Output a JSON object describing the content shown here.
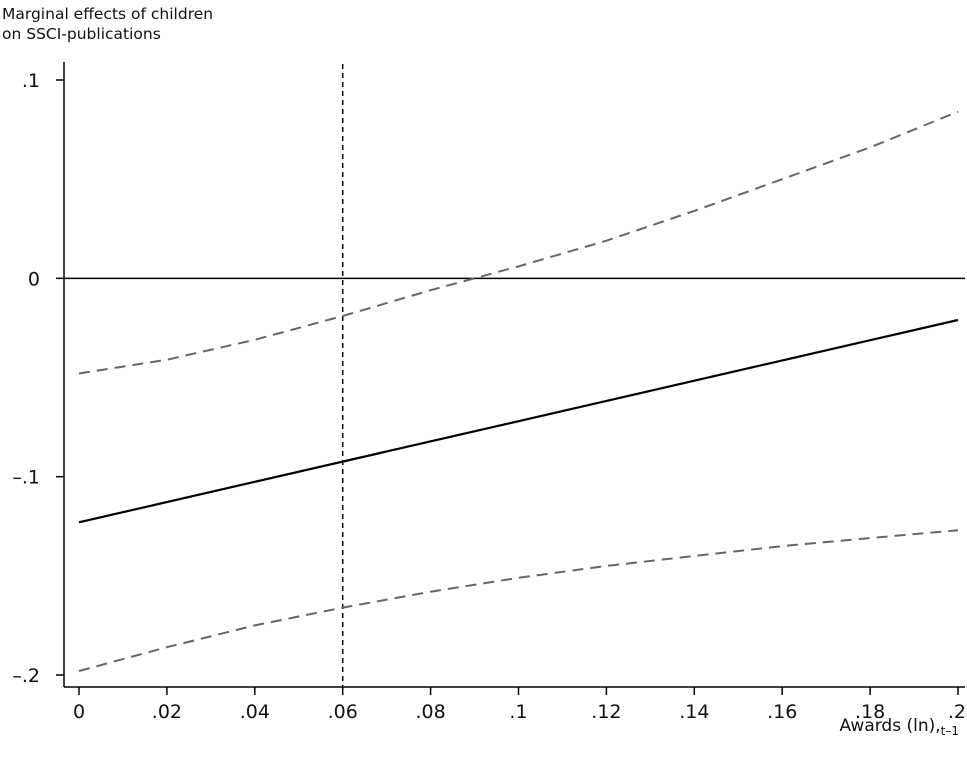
{
  "chart_data": {
    "type": "line",
    "title": "",
    "ylabel_lines": [
      "Marginal effects of children",
      "on SSCI-publications"
    ],
    "xlabel_main": "Awards (ln),",
    "xlabel_sub": "t–1",
    "xlim": [
      0,
      0.2
    ],
    "ylim": [
      -0.2,
      0.1
    ],
    "x_ticks": [
      {
        "value": 0,
        "label": "0"
      },
      {
        "value": 0.02,
        "label": ".02"
      },
      {
        "value": 0.04,
        "label": ".04"
      },
      {
        "value": 0.06,
        "label": ".06"
      },
      {
        "value": 0.08,
        "label": ".08"
      },
      {
        "value": 0.1,
        "label": ".1"
      },
      {
        "value": 0.12,
        "label": ".12"
      },
      {
        "value": 0.14,
        "label": ".14"
      },
      {
        "value": 0.16,
        "label": ".16"
      },
      {
        "value": 0.18,
        "label": ".18"
      },
      {
        "value": 0.2,
        "label": ".2"
      }
    ],
    "y_ticks": [
      {
        "value": 0.1,
        "label": ".1"
      },
      {
        "value": 0,
        "label": "0"
      },
      {
        "value": -0.1,
        "label": "–.1"
      },
      {
        "value": -0.2,
        "label": "–.2"
      }
    ],
    "reference_lines": {
      "horizontal_y": 0,
      "vertical_x": 0.06
    },
    "series": [
      {
        "role": "estimate",
        "style": "solid",
        "color": "#000000",
        "x": [
          0,
          0.2
        ],
        "y": [
          -0.123,
          -0.021
        ]
      },
      {
        "role": "upper-ci",
        "style": "dashed",
        "color": "#666666",
        "x": [
          0,
          0.02,
          0.04,
          0.06,
          0.08,
          0.09,
          0.1,
          0.12,
          0.14,
          0.16,
          0.18,
          0.2
        ],
        "y": [
          -0.048,
          -0.041,
          -0.031,
          -0.019,
          -0.006,
          0.0,
          0.006,
          0.019,
          0.034,
          0.05,
          0.066,
          0.084
        ]
      },
      {
        "role": "lower-ci",
        "style": "dashed",
        "color": "#666666",
        "x": [
          0,
          0.02,
          0.04,
          0.06,
          0.08,
          0.1,
          0.12,
          0.14,
          0.16,
          0.18,
          0.2
        ],
        "y": [
          -0.198,
          -0.186,
          -0.175,
          -0.166,
          -0.158,
          -0.151,
          -0.145,
          -0.14,
          -0.135,
          -0.131,
          -0.127
        ]
      }
    ],
    "grid": false,
    "legend": "none"
  }
}
